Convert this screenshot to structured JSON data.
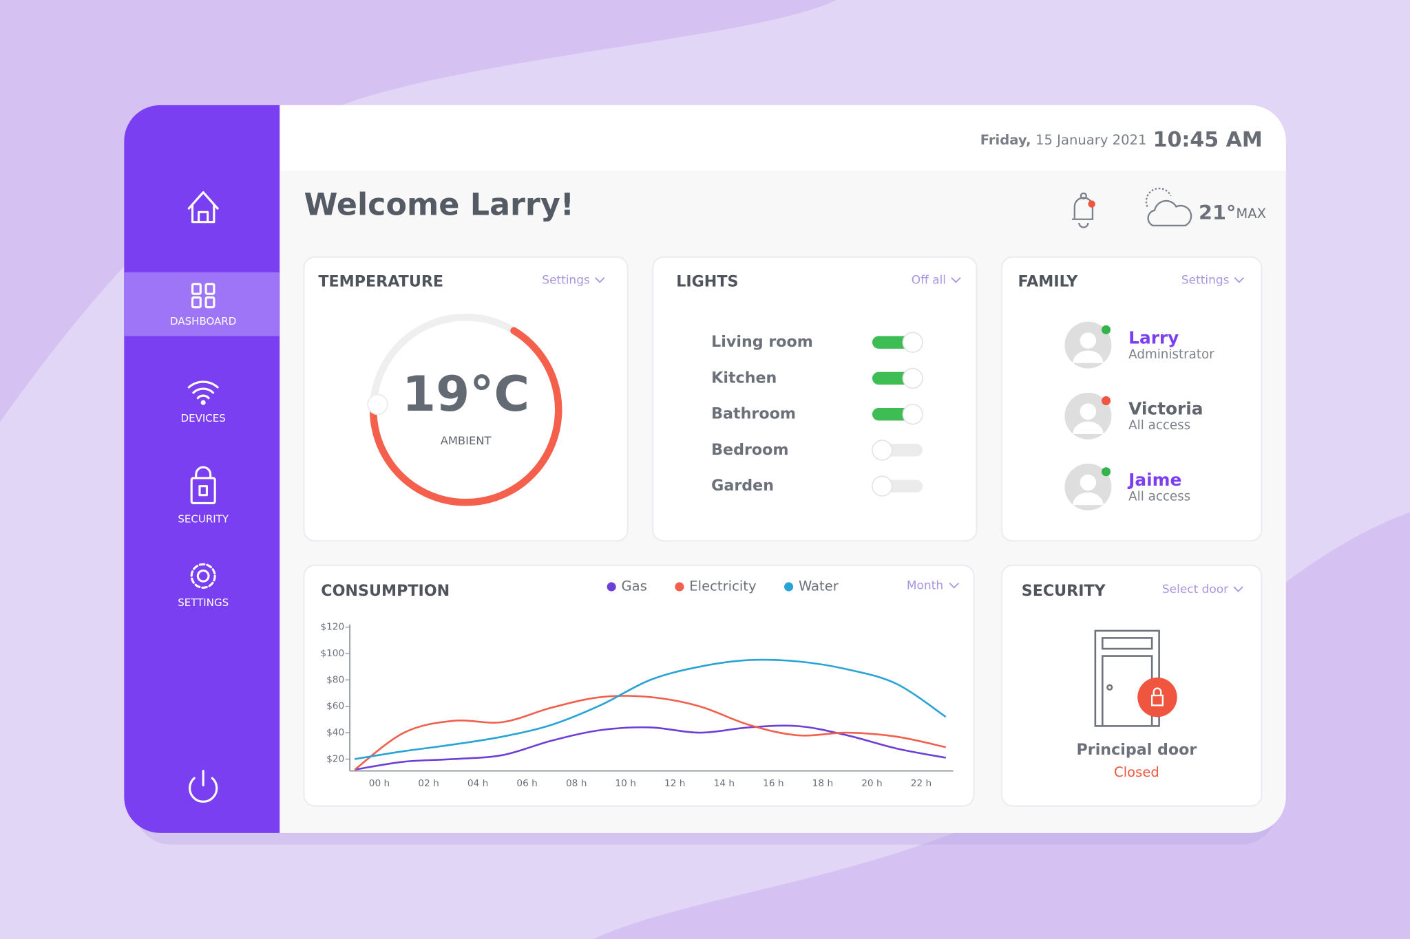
{
  "header": {
    "day": "Friday,",
    "date": "15 January 2021",
    "time": "10:45 AM"
  },
  "welcome": "Welcome Larry!",
  "weather": {
    "temperature": "21°",
    "label": "MAX"
  },
  "nav": [
    "DASHBOARD",
    "DEVICES",
    "SECURITY",
    "SETTINGS"
  ],
  "temperature": {
    "title": "TEMPERATURE",
    "menu": "Settings",
    "value": "19°C",
    "label": "AMBIENT"
  },
  "lights": {
    "title": "LIGHTS",
    "menu": "Off all",
    "rooms": [
      {
        "name": "Living room",
        "on": true
      },
      {
        "name": "Kitchen",
        "on": true
      },
      {
        "name": "Bathroom",
        "on": true
      },
      {
        "name": "Bedroom",
        "on": false
      },
      {
        "name": "Garden",
        "on": false
      }
    ]
  },
  "family": {
    "title": "FAMILY",
    "menu": "Settings",
    "members": [
      {
        "name": "Larry",
        "role": "Administrator",
        "status_color": "#34b34a",
        "name_color": "#7b3ff2"
      },
      {
        "name": "Victoria",
        "role": "All access",
        "status_color": "#f0553f",
        "name_color": "#5f646d"
      },
      {
        "name": "Jaime",
        "role": "All access",
        "status_color": "#34b34a",
        "name_color": "#7b3ff2"
      }
    ]
  },
  "consumption": {
    "type": "line",
    "title": "CONSUMPTION",
    "menu": "Month",
    "x": [
      -1,
      1,
      3,
      5,
      7,
      9,
      11,
      13,
      15,
      17,
      19,
      21,
      23
    ],
    "xlim": [
      -1.2,
      23.3
    ],
    "xticks": [
      {
        "value": 0,
        "label": "00 h"
      },
      {
        "value": 2,
        "label": "02 h"
      },
      {
        "value": 4,
        "label": "04 h"
      },
      {
        "value": 6,
        "label": "06 h"
      },
      {
        "value": 8,
        "label": "08 h"
      },
      {
        "value": 10,
        "label": "10 h"
      },
      {
        "value": 12,
        "label": "12 h"
      },
      {
        "value": 14,
        "label": "14 h"
      },
      {
        "value": 16,
        "label": "16 h"
      },
      {
        "value": 18,
        "label": "18 h"
      },
      {
        "value": 20,
        "label": "20 h"
      },
      {
        "value": 22,
        "label": "22 h"
      }
    ],
    "ylim": [
      11,
      122
    ],
    "yticks": [
      {
        "value": 20,
        "label": "$20"
      },
      {
        "value": 40,
        "label": "$40"
      },
      {
        "value": 60,
        "label": "$60"
      },
      {
        "value": 80,
        "label": "$80"
      },
      {
        "value": 100,
        "label": "$100"
      },
      {
        "value": 120,
        "label": "$120"
      }
    ],
    "series": [
      {
        "name": "Gas",
        "color": "#6c3fd6",
        "values": [
          12,
          18,
          20,
          23,
          34,
          42,
          44,
          40,
          44,
          45,
          38,
          28,
          21
        ]
      },
      {
        "name": "Electricity",
        "color": "#f0604c",
        "values": [
          12,
          40,
          49,
          48,
          59,
          67,
          67,
          60,
          46,
          38,
          40,
          37,
          29
        ]
      },
      {
        "name": "Water",
        "color": "#29a3d6",
        "values": [
          20,
          26,
          31,
          37,
          46,
          61,
          80,
          90,
          95,
          94,
          88,
          77,
          52
        ]
      }
    ]
  },
  "security": {
    "title": "SECURITY",
    "menu": "Select door",
    "door": "Principal door",
    "state": "Closed"
  }
}
